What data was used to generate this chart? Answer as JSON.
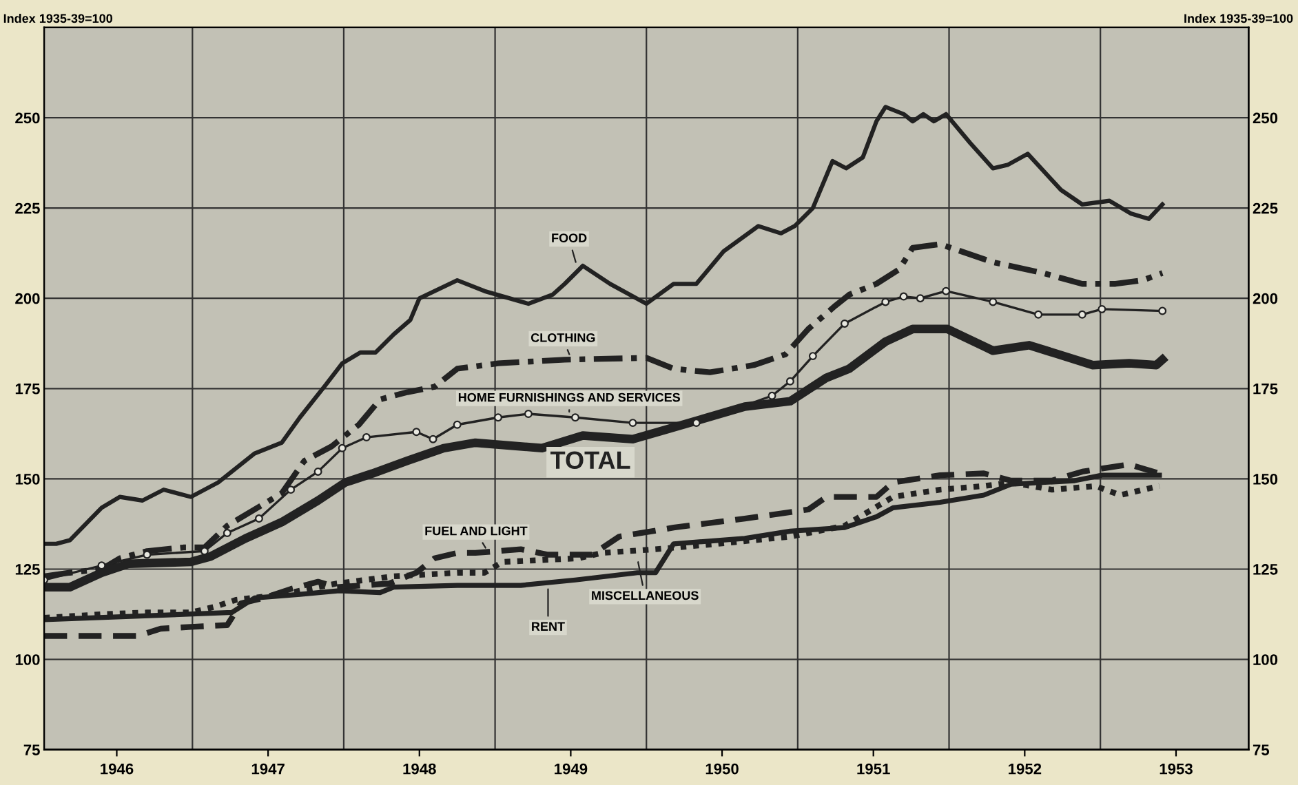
{
  "chart_data": {
    "type": "line",
    "ylabel": "Index 1935-39=100",
    "y2label": "Index 1935-39=100",
    "ylim": [
      75,
      275
    ],
    "yticks": [
      75,
      100,
      125,
      150,
      175,
      200,
      225,
      250
    ],
    "y2lim": [
      75,
      275
    ],
    "y2ticks": [
      75,
      100,
      125,
      150,
      175,
      200,
      225,
      250
    ],
    "xlim": [
      1945.52,
      1953.48
    ],
    "xticks": [
      {
        "value": 1946,
        "label": "1946"
      },
      {
        "value": 1947,
        "label": "1947"
      },
      {
        "value": 1948,
        "label": "1948"
      },
      {
        "value": 1949,
        "label": "1949"
      },
      {
        "value": 1950,
        "label": "1950"
      },
      {
        "value": 1951,
        "label": "1951"
      },
      {
        "value": 1952,
        "label": "1952"
      },
      {
        "value": 1953,
        "label": "1953"
      },
      {
        "value": 1946.5,
        "label": null
      },
      {
        "value": 1947.5,
        "label": null
      },
      {
        "value": 1948.5,
        "label": null
      },
      {
        "value": 1949.5,
        "label": null
      },
      {
        "value": 1950.5,
        "label": null
      },
      {
        "value": 1951.5,
        "label": null
      },
      {
        "value": 1952.5,
        "label": null
      }
    ],
    "grid": true,
    "series": [
      {
        "color": "#222222",
        "line_style": "solid",
        "marker": "none",
        "x": [
          1945.52,
          1945.6,
          1945.69,
          1945.9,
          1946.02,
          1946.17,
          1946.31,
          1946.49,
          1946.67,
          1946.79,
          1946.91,
          1947.09,
          1947.21,
          1947.38,
          1947.49,
          1947.61,
          1947.71,
          1947.83,
          1947.94,
          1948.0,
          1948.25,
          1948.43,
          1948.72,
          1948.88,
          1948.96,
          1949.08,
          1949.26,
          1949.5,
          1949.68,
          1949.83,
          1950.01,
          1950.24,
          1950.39,
          1950.48,
          1950.6,
          1950.73,
          1950.82,
          1950.93,
          1951.02,
          1951.08,
          1951.2,
          1951.26,
          1951.33,
          1951.4,
          1951.48,
          1951.64,
          1951.79,
          1951.89,
          1952.02,
          1952.24,
          1952.38,
          1952.56,
          1952.7,
          1952.82,
          1952.91
        ],
        "values": [
          132,
          132,
          133,
          142,
          145,
          144,
          147,
          145,
          149,
          153,
          157,
          160,
          167,
          176,
          182,
          185,
          185,
          190,
          194,
          200,
          205,
          202,
          198.5,
          201,
          204,
          209,
          204,
          198.5,
          204,
          204,
          213,
          220,
          218,
          220,
          225,
          238,
          236,
          239,
          249,
          253,
          251,
          249,
          251,
          249,
          251,
          243,
          236,
          237,
          240,
          230,
          226,
          227,
          223.5,
          222,
          226
        ]
      },
      {
        "color": "#222222",
        "line_style": "dashdot",
        "marker": "none",
        "x": [
          1945.52,
          1945.69,
          1945.9,
          1946.02,
          1946.2,
          1946.44,
          1946.58,
          1946.73,
          1946.97,
          1947.09,
          1947.24,
          1947.42,
          1947.6,
          1947.74,
          1947.92,
          1948.1,
          1948.25,
          1948.52,
          1948.96,
          1949.5,
          1949.68,
          1949.92,
          1950.21,
          1950.42,
          1950.57,
          1950.75,
          1950.84,
          1951.02,
          1951.17,
          1951.26,
          1951.44,
          1951.58,
          1951.79,
          1952.12,
          1952.38,
          1952.6,
          1952.78,
          1952.91
        ],
        "values": [
          123,
          124,
          125,
          128,
          130,
          131,
          131,
          137,
          143,
          146,
          155,
          159,
          165,
          172,
          174,
          175.5,
          180.5,
          182,
          183,
          183.5,
          180.5,
          179.5,
          181.5,
          184.5,
          191.5,
          198,
          201,
          204,
          208,
          214,
          215,
          213,
          210,
          207,
          204,
          204,
          205,
          207
        ]
      },
      {
        "color": "#222222",
        "line_style": "solid",
        "marker": "circle",
        "x": [
          1945.52,
          1945.9,
          1946.2,
          1946.58,
          1946.73,
          1946.94,
          1947.15,
          1947.33,
          1947.49,
          1947.65,
          1947.98,
          1948.09,
          1948.25,
          1948.52,
          1948.72,
          1949.03,
          1949.41,
          1949.83,
          1950.33,
          1950.45,
          1950.6,
          1950.81,
          1951.08,
          1951.2,
          1951.31,
          1951.48,
          1951.79,
          1952.09,
          1952.38,
          1952.51,
          1952.91
        ],
        "values": [
          122,
          126,
          129,
          130,
          135,
          139,
          147,
          152,
          158.5,
          161.5,
          163,
          161,
          165,
          167,
          168,
          167,
          165.5,
          165.5,
          173,
          177,
          184,
          193,
          199,
          200.5,
          200,
          202,
          199,
          195.5,
          195.5,
          197,
          196.5
        ]
      },
      {
        "name": "TOTAL",
        "color": "#222222",
        "line_style": "solid",
        "marker": "none",
        "x": [
          1945.52,
          1945.69,
          1945.9,
          1946.08,
          1946.49,
          1946.62,
          1946.85,
          1947.09,
          1947.33,
          1947.51,
          1947.69,
          1947.92,
          1948.16,
          1948.37,
          1948.81,
          1949.08,
          1949.41,
          1949.62,
          1950.15,
          1950.45,
          1950.69,
          1950.84,
          1951.08,
          1951.26,
          1951.49,
          1951.79,
          1952.03,
          1952.45,
          1952.69,
          1952.87,
          1952.91
        ],
        "values": [
          120,
          120,
          124,
          126.5,
          127,
          128.5,
          133.5,
          138,
          144,
          149,
          151.5,
          155,
          158.5,
          160,
          158.5,
          162,
          161,
          163.5,
          170,
          171.5,
          178,
          180.5,
          188,
          191.5,
          191.5,
          185.5,
          187,
          181.5,
          182,
          181.5,
          183
        ]
      },
      {
        "color": "#222222",
        "line_style": "dashed",
        "marker": "none",
        "x": [
          1945.52,
          1946.14,
          1946.29,
          1946.49,
          1946.73,
          1946.82,
          1946.97,
          1947.15,
          1947.33,
          1947.45,
          1947.8,
          1947.98,
          1948.1,
          1948.25,
          1948.37,
          1948.67,
          1948.85,
          1949.14,
          1949.32,
          1949.68,
          1950.15,
          1950.57,
          1950.69,
          1951.02,
          1951.13,
          1951.44,
          1951.73,
          1951.91,
          1952.18,
          1952.38,
          1952.69,
          1952.89
        ],
        "values": [
          106.5,
          106.5,
          108.5,
          109,
          109.5,
          115.5,
          117,
          119.5,
          121.5,
          120,
          121,
          124,
          128,
          129.5,
          129.5,
          130.5,
          129,
          129,
          134,
          136.5,
          139,
          141.5,
          145,
          145,
          149,
          151,
          151.5,
          149.5,
          149.5,
          152,
          154,
          151.5
        ]
      },
      {
        "color": "#222222",
        "line_style": "solid",
        "marker": "none",
        "x": [
          1945.52,
          1946.76,
          1946.91,
          1947.21,
          1947.47,
          1947.74,
          1947.83,
          1948.25,
          1948.67,
          1949.03,
          1949.44,
          1949.56,
          1949.68,
          1950.15,
          1950.45,
          1950.81,
          1951.02,
          1951.13,
          1951.44,
          1951.73,
          1951.91,
          1952.33,
          1952.51,
          1952.89
        ],
        "values": [
          111,
          113,
          117,
          118,
          119,
          118.5,
          120,
          120.5,
          120.5,
          122,
          124,
          124,
          132,
          133.5,
          135.5,
          136.5,
          139.5,
          142,
          143.5,
          145.5,
          148.5,
          149.5,
          151,
          151
        ]
      },
      {
        "color": "#222222",
        "line_style": "dotted",
        "marker": "none",
        "x": [
          1945.52,
          1945.9,
          1946.2,
          1946.49,
          1946.64,
          1946.79,
          1947.09,
          1947.45,
          1947.83,
          1948.25,
          1948.43,
          1948.55,
          1949.05,
          1949.21,
          1949.56,
          1949.97,
          1950.45,
          1950.81,
          1951.13,
          1951.44,
          1951.73,
          1951.91,
          1952.18,
          1952.47,
          1952.63,
          1952.89
        ],
        "values": [
          111.5,
          112.5,
          113,
          113,
          114.5,
          116.5,
          118,
          121,
          123,
          124,
          124,
          127,
          128,
          129.5,
          130.5,
          132,
          134,
          137,
          145,
          147,
          148,
          149,
          147,
          148,
          145.5,
          148
        ]
      }
    ],
    "annotations": [
      {
        "text": "FOOD",
        "x": 1949.04,
        "y": 209
      },
      {
        "text": "CLOTHING",
        "x": 1949.0,
        "y": 183.5
      },
      {
        "text": "HOME FURNISHINGS AND SERVICES",
        "x": 1948.99,
        "y": 167.5
      },
      {
        "text": "FUEL AND LIGHT",
        "x": 1948.45,
        "y": 130
      },
      {
        "text": "RENT",
        "x": 1948.85,
        "y": 120.5
      },
      {
        "text": "MISCELLANEOUS",
        "x": 1949.44,
        "y": 128
      }
    ]
  }
}
